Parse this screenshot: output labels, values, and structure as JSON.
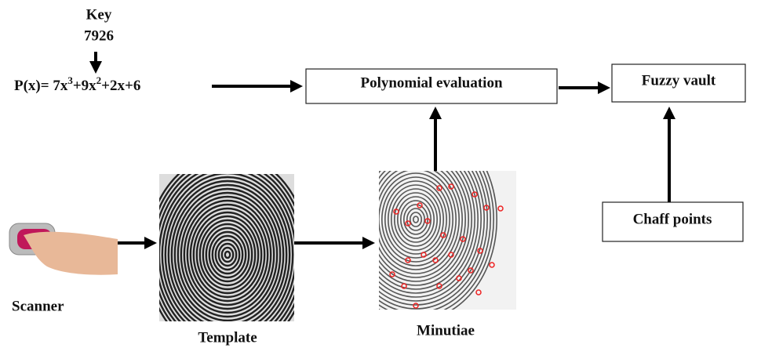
{
  "key": {
    "label": "Key",
    "value": "7926"
  },
  "polynomial": [
    "P(x)= 7x",
    "3",
    "+9x",
    "2",
    "+2x+6"
  ],
  "nodes": [
    {
      "label": "Polynomial evaluation"
    },
    {
      "label": "Fuzzy vault"
    },
    {
      "label": "Chaff points"
    },
    {
      "label": "Scanner"
    },
    {
      "label": "Template"
    },
    {
      "label": "Minutiae"
    }
  ]
}
